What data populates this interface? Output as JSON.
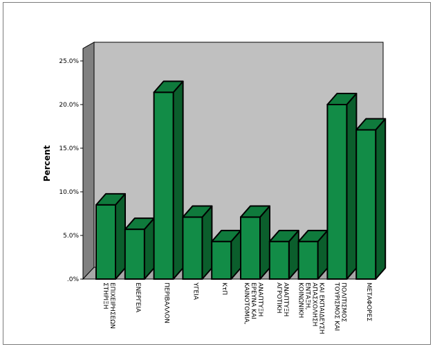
{
  "chart_data": {
    "type": "bar",
    "title": "",
    "xlabel": "",
    "ylabel": "Percent",
    "ylim": [
      0,
      25
    ],
    "yticks": [
      ".0%",
      "5.0%",
      "10.0%",
      "15.0%",
      "20.0%",
      "25.0%"
    ],
    "categories": [
      [
        "ΣΤΗΡΙΞΗ",
        "ΕΠΙΧΕΙΡΗΣΕΩΝ"
      ],
      [
        "ΕΝΕΡΓΕΙΑ"
      ],
      [
        "ΠΕΡΙΒΑΛΛΟΝ"
      ],
      [
        "ΥΓΕΙΑ"
      ],
      [
        "ΚτΠ"
      ],
      [
        "ΚΑΙΝΟΤΟΜΙΑ,",
        "ΕΡΕΥΝΑ ΚΑΙ",
        "ΑΝΑΠΤΥΞΗ"
      ],
      [
        "ΑΓΡΟΤΙΚΗ",
        "ΑΝΑΠΤΥΞΗ"
      ],
      [
        "ΚΟΙΝΩΝΙΚΗ",
        "ΕΝΤΑΞΗ,",
        "ΑΠΑΣΧΟΛΗΣΗ",
        "ΚΑΙ ΕΚΠΑΙΔΕΥΣΗ"
      ],
      [
        "ΤΟΥΡΙΣΜΟΣ ΚΑΙ",
        "ΠΟΛΙΤΙΣΜΟΣ"
      ],
      [
        "ΜΕΤΑΦΟΡΕΣ"
      ]
    ],
    "values": [
      8.5,
      5.7,
      21.4,
      7.1,
      4.3,
      7.1,
      4.3,
      4.3,
      20.0,
      17.1
    ],
    "colors": {
      "bar_front": "#128c47",
      "bar_side": "#0b5e2c",
      "bar_top": "#0f7a3c",
      "back_wall": "#c0c0c0",
      "side_wall": "#808080",
      "floor": "#a8a8a8"
    }
  }
}
